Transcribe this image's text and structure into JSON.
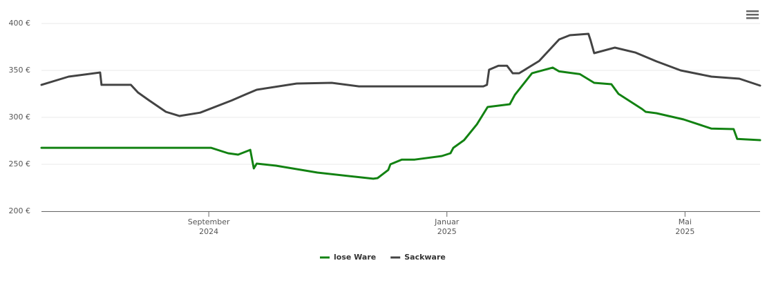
{
  "chart_data": {
    "type": "line",
    "xlim": [
      2024.433,
      2025.438
    ],
    "xticks": [
      {
        "value": 2024.667,
        "label": "September 2024"
      },
      {
        "value": 2025.0,
        "label": "Januar 2025"
      },
      {
        "value": 2025.333,
        "label": "Mai 2025"
      }
    ],
    "ylim": [
      200,
      400
    ],
    "yticks": [
      {
        "value": 200,
        "label": "200 €"
      },
      {
        "value": 250,
        "label": "250 €"
      },
      {
        "value": 300,
        "label": "300 €"
      },
      {
        "value": 350,
        "label": "350 €"
      },
      {
        "value": 400,
        "label": "400 €"
      }
    ],
    "grid": true,
    "legend": "bottom",
    "series": [
      {
        "name": "lose Ware",
        "color": "#128212",
        "x": [
          2024.433,
          2024.67,
          2024.694,
          2024.708,
          2024.725,
          2024.73,
          2024.734,
          2024.761,
          2024.819,
          2024.897,
          2024.903,
          2024.918,
          2024.921,
          2024.937,
          2024.955,
          2024.993,
          2025.005,
          2025.009,
          2025.024,
          2025.042,
          2025.057,
          2025.088,
          2025.095,
          2025.119,
          2025.148,
          2025.157,
          2025.186,
          2025.206,
          2025.23,
          2025.24,
          2025.273,
          2025.278,
          2025.293,
          2025.331,
          2025.37,
          2025.401,
          2025.406,
          2025.438
        ],
        "values": [
          267.6,
          267.6,
          261.8,
          260.3,
          265.4,
          245.6,
          250.7,
          248.5,
          241.2,
          234.6,
          235.3,
          244,
          250,
          255,
          255,
          258.8,
          261.8,
          267.6,
          275.7,
          292.6,
          311,
          314,
          324,
          347,
          353,
          349,
          346,
          336.8,
          335.3,
          325,
          308.8,
          305.9,
          304.4,
          297.8,
          288,
          287.5,
          277,
          275.7
        ]
      },
      {
        "name": "Sackware",
        "color": "#434343",
        "x": [
          2024.433,
          2024.471,
          2024.515,
          2024.517,
          2024.558,
          2024.568,
          2024.583,
          2024.607,
          2024.626,
          2024.655,
          2024.699,
          2024.718,
          2024.734,
          2024.79,
          2024.839,
          2024.877,
          2025.051,
          2025.056,
          2025.059,
          2025.072,
          2025.084,
          2025.092,
          2025.101,
          2025.129,
          2025.157,
          2025.172,
          2025.198,
          2025.201,
          2025.206,
          2025.235,
          2025.264,
          2025.293,
          2025.327,
          2025.37,
          2025.409,
          2025.438
        ],
        "values": [
          334.6,
          343.4,
          347.8,
          334.6,
          334.6,
          326.5,
          318.4,
          305.9,
          301.5,
          305,
          318,
          324.3,
          329.4,
          336,
          336.8,
          333,
          333,
          334.6,
          350.7,
          355,
          355,
          347,
          347,
          360,
          383,
          387.5,
          389,
          382,
          368.4,
          374.3,
          369,
          359.6,
          350,
          343.4,
          341.2,
          333.8
        ]
      }
    ]
  }
}
